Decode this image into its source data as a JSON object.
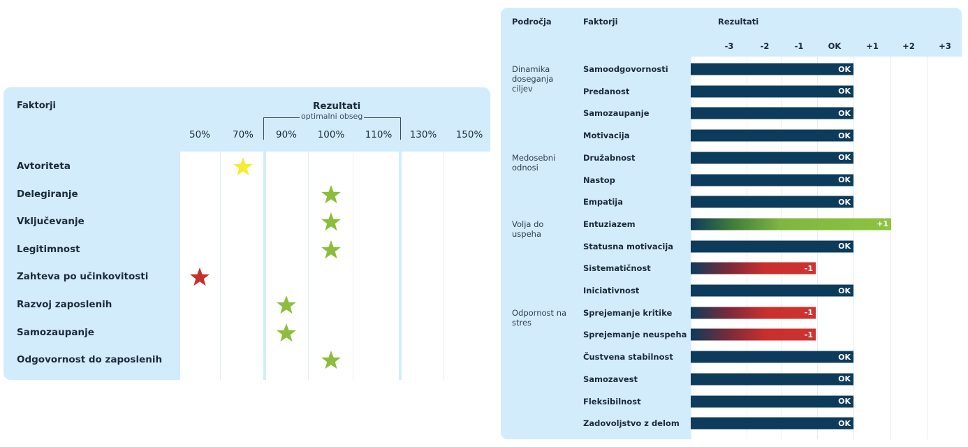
{
  "chart_data": [
    {
      "type": "scatter",
      "title": "Rezultati",
      "row_header": "Faktorji",
      "optimal_range_label": "optimalni obseg",
      "optimal_range": [
        80,
        120
      ],
      "x_ticks": [
        "50%",
        "70%",
        "90%",
        "100%",
        "110%",
        "130%",
        "150%"
      ],
      "x_tick_values": [
        50,
        70,
        90,
        100,
        110,
        130,
        150
      ],
      "colors": {
        "yellow": "#f6ec35",
        "green": "#8cbd3c",
        "red": "#c4302b"
      },
      "rows": [
        {
          "label": "Avtoriteta",
          "value": 70,
          "color": "yellow"
        },
        {
          "label": "Delegiranje",
          "value": 100,
          "color": "green"
        },
        {
          "label": "Vključevanje",
          "value": 100,
          "color": "green"
        },
        {
          "label": "Legitimnost",
          "value": 100,
          "color": "green"
        },
        {
          "label": "Zahteva po učinkovitosti",
          "value": 50,
          "color": "red"
        },
        {
          "label": "Razvoj zaposlenih",
          "value": 90,
          "color": "green"
        },
        {
          "label": "Samozaupanje",
          "value": 90,
          "color": "green"
        },
        {
          "label": "Odgovornost do zaposlenih",
          "value": 100,
          "color": "green"
        }
      ]
    },
    {
      "type": "bar",
      "headers": {
        "areas": "Področja",
        "factors": "Faktorji",
        "results": "Rezultati"
      },
      "x_ticks": [
        "-3",
        "-2",
        "-1",
        "OK",
        "+1",
        "+2",
        "+3"
      ],
      "x_tick_values": [
        -3,
        -2,
        -1,
        0,
        1,
        2,
        3
      ],
      "colors": {
        "ok": "#0d3b5c",
        "positive": "#8cc43f",
        "negative": "#cf322f"
      },
      "areas": [
        {
          "label": "Dinamika doseganja ciljev",
          "first_row": 0
        },
        {
          "label": "Medosebni odnosi",
          "first_row": 4
        },
        {
          "label": "Volja do uspeha",
          "first_row": 7
        },
        {
          "label": "Odpornost na stres",
          "first_row": 11
        }
      ],
      "rows": [
        {
          "factor": "Samoodgovornosti",
          "value": 0,
          "label": "OK"
        },
        {
          "factor": "Predanost",
          "value": 0,
          "label": "OK"
        },
        {
          "factor": "Samozaupanje",
          "value": 0,
          "label": "OK"
        },
        {
          "factor": "Motivacija",
          "value": 0,
          "label": "OK"
        },
        {
          "factor": "Družabnost",
          "value": 0,
          "label": "OK"
        },
        {
          "factor": "Nastop",
          "value": 0,
          "label": "OK"
        },
        {
          "factor": "Empatija",
          "value": 0,
          "label": "OK"
        },
        {
          "factor": "Entuziazem",
          "value": 1,
          "label": "+1"
        },
        {
          "factor": "Statusna motivacija",
          "value": 0,
          "label": "OK"
        },
        {
          "factor": "Sistematičnost",
          "value": -1,
          "label": "-1"
        },
        {
          "factor": "Iniciativnost",
          "value": 0,
          "label": "OK"
        },
        {
          "factor": "Sprejemanje kritike",
          "value": -1,
          "label": "-1"
        },
        {
          "factor": "Sprejemanje neuspeha",
          "value": -1,
          "label": "-1"
        },
        {
          "factor": "Čustvena stabilnost",
          "value": 0,
          "label": "OK"
        },
        {
          "factor": "Samozavest",
          "value": 0,
          "label": "OK"
        },
        {
          "factor": "Fleksibilnost",
          "value": 0,
          "label": "OK"
        },
        {
          "factor": "Zadovoljstvo z delom",
          "value": 0,
          "label": "OK"
        }
      ]
    }
  ]
}
